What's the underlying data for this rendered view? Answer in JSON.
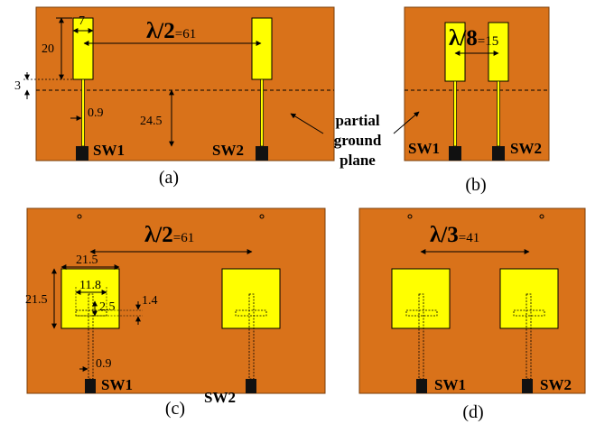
{
  "colors": {
    "substrate": "#d9721a",
    "patch": "#ffff00",
    "switch": "#111111",
    "line": "#000000"
  },
  "panels": {
    "a": {
      "caption": "(a)",
      "spacing_main": "λ/2",
      "spacing_value": "=61",
      "dims": {
        "width": "7",
        "height": "20",
        "gap": "3",
        "feed_width": "0.9",
        "ground": "24.5"
      },
      "switches": [
        "SW1",
        "SW2"
      ]
    },
    "b": {
      "caption": "(b)",
      "spacing_main": "λ/8",
      "spacing_value": "=15",
      "switches": [
        "SW1",
        "SW2"
      ]
    },
    "c": {
      "caption": "(c)",
      "spacing_main": "λ/2",
      "spacing_value": "=61",
      "dims": {
        "width": "21.5",
        "height": "21.5",
        "slot_length": "11.8",
        "slot_width": "2.5",
        "slot_offset": "1.4",
        "feed_width": "0.9"
      },
      "switches": [
        "SW1",
        "SW2"
      ]
    },
    "d": {
      "caption": "(d)",
      "spacing_main": "λ/3",
      "spacing_value": "=41",
      "switches": [
        "SW1",
        "SW2"
      ]
    }
  },
  "annotation": {
    "lines": [
      "partial",
      "ground",
      "plane"
    ]
  }
}
